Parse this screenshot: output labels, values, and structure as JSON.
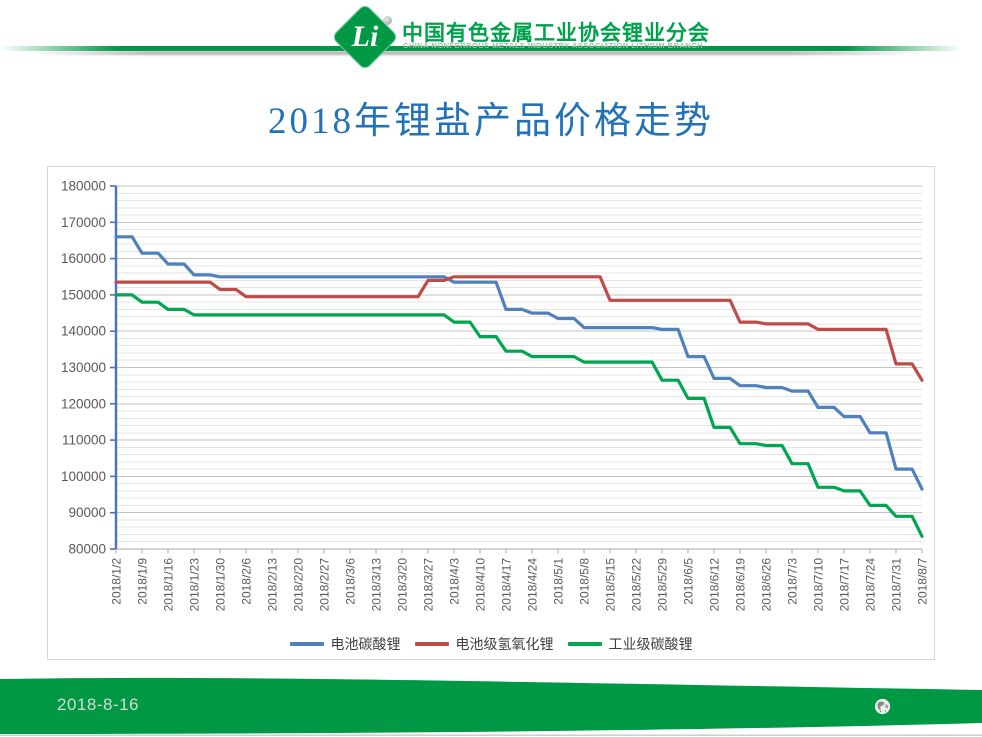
{
  "header": {
    "logo_text": "Li",
    "org_name_cn": "中国有色金属工业协会锂业分会",
    "org_name_en": "CHINA NONFERROUS METALS INDUSTRY ASSOCIATION LITHIUM BRANCH"
  },
  "title": "2018年锂盐产品价格走势",
  "footer": {
    "date": "2018-8-16"
  },
  "colors": {
    "brand_green": "#009845",
    "title_blue": "#2272B9",
    "axis_line_blue": "#4472C4",
    "axis_text_gray": "#595959",
    "grid_minor": "#E4E4E4",
    "grid_major": "#C3C3C3"
  },
  "chart_data": {
    "type": "line",
    "title": "",
    "xlabel": "",
    "ylabel": "",
    "ylim": [
      80000,
      180000
    ],
    "y_major_step": 10000,
    "y_minor_step": 2000,
    "y_ticks": [
      80000,
      90000,
      100000,
      110000,
      120000,
      130000,
      140000,
      150000,
      160000,
      170000,
      180000
    ],
    "grid": "horizontal minor + major",
    "legend_position": "bottom",
    "categories": [
      "2018/1/2",
      "2018/1/9",
      "2018/1/16",
      "2018/1/23",
      "2018/1/30",
      "2018/2/6",
      "2018/2/13",
      "2018/2/20",
      "2018/2/27",
      "2018/3/6",
      "2018/3/13",
      "2018/3/20",
      "2018/3/27",
      "2018/4/3",
      "2018/4/10",
      "2018/4/17",
      "2018/4/24",
      "2018/5/1",
      "2018/5/8",
      "2018/5/15",
      "2018/5/22",
      "2018/5/29",
      "2018/6/5",
      "2018/6/12",
      "2018/6/19",
      "2018/6/26",
      "2018/7/3",
      "2018/7/10",
      "2018/7/17",
      "2018/7/24",
      "2018/7/31",
      "2018/8/7"
    ],
    "series": [
      {
        "name": "电池碳酸锂",
        "color": "#4F81BD",
        "values": [
          166000,
          161500,
          158500,
          155500,
          155000,
          155000,
          155000,
          155000,
          155000,
          155000,
          155000,
          155000,
          155000,
          153500,
          153500,
          146000,
          145000,
          143500,
          141000,
          141000,
          141000,
          140500,
          133000,
          127000,
          125000,
          124500,
          123500,
          119000,
          116500,
          112000,
          102000,
          96500
        ]
      },
      {
        "name": "电池级氢氧化锂",
        "color": "#BE4B48",
        "values": [
          153500,
          153500,
          153500,
          153500,
          151500,
          149500,
          149500,
          149500,
          149500,
          149500,
          149500,
          149500,
          154000,
          155000,
          155000,
          155000,
          155000,
          155000,
          155000,
          148500,
          148500,
          148500,
          148500,
          148500,
          142500,
          142000,
          142000,
          140500,
          140500,
          140500,
          131000,
          126500
        ]
      },
      {
        "name": "工业级碳酸锂",
        "color": "#00A650",
        "values": [
          150000,
          148000,
          146000,
          144500,
          144500,
          144500,
          144500,
          144500,
          144500,
          144500,
          144500,
          144500,
          144500,
          142500,
          138500,
          134500,
          133000,
          133000,
          131500,
          131500,
          131500,
          126500,
          121500,
          113500,
          109000,
          108500,
          103500,
          97000,
          96000,
          92000,
          89000,
          83500
        ]
      }
    ]
  }
}
